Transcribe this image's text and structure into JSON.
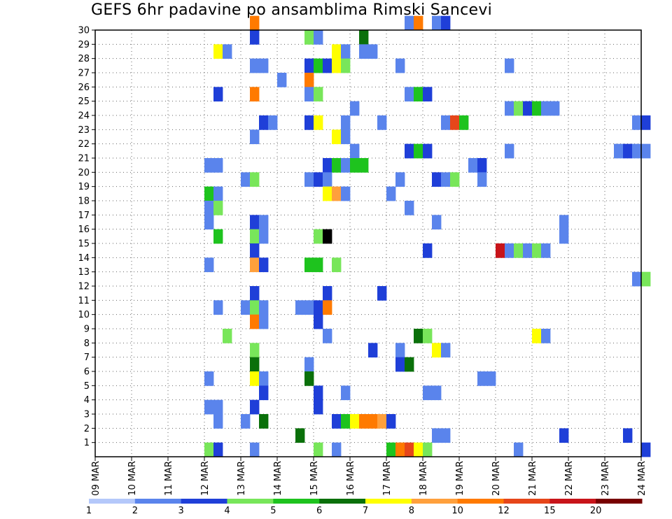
{
  "chart_data": {
    "type": "heatmap",
    "title": "GEFS 6hr padavine po ansamblima Rimski Sancevi",
    "x_unit": "6-hour step from 09 MAR 00Z",
    "x_ticks": [
      "09 MAR",
      "10 MAR",
      "11 MAR",
      "12 MAR",
      "13 MAR",
      "14 MAR",
      "15 MAR",
      "16 MAR",
      "17 MAR",
      "18 MAR",
      "19 MAR",
      "20 MAR",
      "21 MAR",
      "22 MAR",
      "23 MAR",
      "24 MAR"
    ],
    "y_ticks": [
      "1",
      "2",
      "3",
      "4",
      "5",
      "6",
      "7",
      "8",
      "9",
      "10",
      "11",
      "12",
      "13",
      "14",
      "15",
      "16",
      "17",
      "18",
      "19",
      "20",
      "21",
      "22",
      "23",
      "24",
      "25",
      "26",
      "27",
      "28",
      "29",
      "30"
    ],
    "grid": true,
    "legend": {
      "position": "bottom",
      "labels": [
        "1",
        "2",
        "3",
        "4",
        "5",
        "6",
        "7",
        "8",
        "10",
        "12",
        "15",
        "20"
      ],
      "colors": [
        "#b4c8fa",
        "#5a84ec",
        "#1f3fd8",
        "#78e65a",
        "#1ec31e",
        "#0a700a",
        "#ffff00",
        "#ffa03c",
        "#ff7a00",
        "#e6461a",
        "#c8141a",
        "#780000"
      ]
    },
    "cells": [
      {
        "m": 30,
        "t": 17,
        "l": 8
      },
      {
        "m": 30,
        "t": 34,
        "l": 1
      },
      {
        "m": 30,
        "t": 35,
        "l": 8
      },
      {
        "m": 30,
        "t": 37,
        "l": 1
      },
      {
        "m": 30,
        "t": 38,
        "l": 2
      },
      {
        "m": 29,
        "t": 17,
        "l": 2
      },
      {
        "m": 29,
        "t": 23,
        "l": 3
      },
      {
        "m": 29,
        "t": 24,
        "l": 1
      },
      {
        "m": 29,
        "t": 29,
        "l": 5
      },
      {
        "m": 28,
        "t": 13,
        "l": 6
      },
      {
        "m": 28,
        "t": 14,
        "l": 1
      },
      {
        "m": 28,
        "t": 26,
        "l": 6
      },
      {
        "m": 28,
        "t": 27,
        "l": 1
      },
      {
        "m": 28,
        "t": 29,
        "l": 1
      },
      {
        "m": 28,
        "t": 30,
        "l": 1
      },
      {
        "m": 27,
        "t": 17,
        "l": 1
      },
      {
        "m": 27,
        "t": 18,
        "l": 1
      },
      {
        "m": 27,
        "t": 23,
        "l": 2
      },
      {
        "m": 27,
        "t": 24,
        "l": 4
      },
      {
        "m": 27,
        "t": 25,
        "l": 2
      },
      {
        "m": 27,
        "t": 26,
        "l": 6
      },
      {
        "m": 27,
        "t": 27,
        "l": 3
      },
      {
        "m": 27,
        "t": 33,
        "l": 1
      },
      {
        "m": 27,
        "t": 45,
        "l": 1
      },
      {
        "m": 26,
        "t": 20,
        "l": 1
      },
      {
        "m": 26,
        "t": 23,
        "l": 8
      },
      {
        "m": 25,
        "t": 13,
        "l": 2
      },
      {
        "m": 25,
        "t": 17,
        "l": 8
      },
      {
        "m": 25,
        "t": 23,
        "l": 1
      },
      {
        "m": 25,
        "t": 24,
        "l": 3
      },
      {
        "m": 25,
        "t": 34,
        "l": 1
      },
      {
        "m": 25,
        "t": 35,
        "l": 4
      },
      {
        "m": 25,
        "t": 36,
        "l": 2
      },
      {
        "m": 24,
        "t": 28,
        "l": 1
      },
      {
        "m": 24,
        "t": 45,
        "l": 1
      },
      {
        "m": 24,
        "t": 46,
        "l": 3
      },
      {
        "m": 24,
        "t": 47,
        "l": 2
      },
      {
        "m": 24,
        "t": 48,
        "l": 4
      },
      {
        "m": 24,
        "t": 49,
        "l": 1
      },
      {
        "m": 24,
        "t": 50,
        "l": 1
      },
      {
        "m": 23,
        "t": 18,
        "l": 2
      },
      {
        "m": 23,
        "t": 19,
        "l": 1
      },
      {
        "m": 23,
        "t": 23,
        "l": 2
      },
      {
        "m": 23,
        "t": 24,
        "l": 6
      },
      {
        "m": 23,
        "t": 27,
        "l": 1
      },
      {
        "m": 23,
        "t": 31,
        "l": 1
      },
      {
        "m": 23,
        "t": 38,
        "l": 1
      },
      {
        "m": 23,
        "t": 39,
        "l": 9
      },
      {
        "m": 23,
        "t": 40,
        "l": 4
      },
      {
        "m": 23,
        "t": 59,
        "l": 1
      },
      {
        "m": 23,
        "t": 60,
        "l": 2
      },
      {
        "m": 22,
        "t": 17,
        "l": 1
      },
      {
        "m": 22,
        "t": 26,
        "l": 6
      },
      {
        "m": 22,
        "t": 27,
        "l": 1
      },
      {
        "m": 21,
        "t": 28,
        "l": 1
      },
      {
        "m": 21,
        "t": 34,
        "l": 2
      },
      {
        "m": 21,
        "t": 35,
        "l": 4
      },
      {
        "m": 21,
        "t": 36,
        "l": 2
      },
      {
        "m": 21,
        "t": 45,
        "l": 1
      },
      {
        "m": 21,
        "t": 57,
        "l": 1
      },
      {
        "m": 21,
        "t": 58,
        "l": 2
      },
      {
        "m": 21,
        "t": 59,
        "l": 1
      },
      {
        "m": 21,
        "t": 60,
        "l": 1
      },
      {
        "m": 20,
        "t": 12,
        "l": 1
      },
      {
        "m": 20,
        "t": 13,
        "l": 1
      },
      {
        "m": 20,
        "t": 25,
        "l": 2
      },
      {
        "m": 20,
        "t": 26,
        "l": 4
      },
      {
        "m": 20,
        "t": 27,
        "l": 1
      },
      {
        "m": 20,
        "t": 28,
        "l": 4
      },
      {
        "m": 20,
        "t": 29,
        "l": 4
      },
      {
        "m": 20,
        "t": 41,
        "l": 1
      },
      {
        "m": 20,
        "t": 42,
        "l": 2
      },
      {
        "m": 19,
        "t": 16,
        "l": 1
      },
      {
        "m": 19,
        "t": 17,
        "l": 3
      },
      {
        "m": 19,
        "t": 23,
        "l": 1
      },
      {
        "m": 19,
        "t": 24,
        "l": 2
      },
      {
        "m": 19,
        "t": 25,
        "l": 1
      },
      {
        "m": 19,
        "t": 33,
        "l": 1
      },
      {
        "m": 19,
        "t": 37,
        "l": 2
      },
      {
        "m": 19,
        "t": 38,
        "l": 1
      },
      {
        "m": 19,
        "t": 39,
        "l": 3
      },
      {
        "m": 19,
        "t": 42,
        "l": 1
      },
      {
        "m": 18,
        "t": 12,
        "l": 4
      },
      {
        "m": 18,
        "t": 13,
        "l": 1
      },
      {
        "m": 18,
        "t": 25,
        "l": 6
      },
      {
        "m": 18,
        "t": 26,
        "l": 7
      },
      {
        "m": 18,
        "t": 27,
        "l": 1
      },
      {
        "m": 18,
        "t": 32,
        "l": 1
      },
      {
        "m": 17,
        "t": 12,
        "l": 1
      },
      {
        "m": 17,
        "t": 13,
        "l": 3
      },
      {
        "m": 17,
        "t": 34,
        "l": 1
      },
      {
        "m": 16,
        "t": 12,
        "l": 1
      },
      {
        "m": 16,
        "t": 17,
        "l": 2
      },
      {
        "m": 16,
        "t": 18,
        "l": 1
      },
      {
        "m": 16,
        "t": 37,
        "l": 1
      },
      {
        "m": 16,
        "t": 51,
        "l": 1
      },
      {
        "m": 15,
        "t": 13,
        "l": 4
      },
      {
        "m": 15,
        "t": 17,
        "l": 3
      },
      {
        "m": 15,
        "t": 18,
        "l": 1
      },
      {
        "m": 15,
        "t": 24,
        "l": 3
      },
      {
        "m": 15,
        "t": 25,
        "l": 20
      },
      {
        "m": 15,
        "t": 51,
        "l": 1
      },
      {
        "m": 14,
        "t": 17,
        "l": 2
      },
      {
        "m": 14,
        "t": 36,
        "l": 2
      },
      {
        "m": 14,
        "t": 44,
        "l": 10
      },
      {
        "m": 14,
        "t": 45,
        "l": 1
      },
      {
        "m": 14,
        "t": 46,
        "l": 3
      },
      {
        "m": 14,
        "t": 47,
        "l": 1
      },
      {
        "m": 14,
        "t": 48,
        "l": 3
      },
      {
        "m": 14,
        "t": 49,
        "l": 1
      },
      {
        "m": 13,
        "t": 12,
        "l": 1
      },
      {
        "m": 13,
        "t": 17,
        "l": 7
      },
      {
        "m": 13,
        "t": 18,
        "l": 2
      },
      {
        "m": 13,
        "t": 23,
        "l": 4
      },
      {
        "m": 13,
        "t": 24,
        "l": 4
      },
      {
        "m": 13,
        "t": 26,
        "l": 3
      },
      {
        "m": 12,
        "t": 59,
        "l": 1
      },
      {
        "m": 12,
        "t": 60,
        "l": 3
      },
      {
        "m": 11,
        "t": 17,
        "l": 2
      },
      {
        "m": 11,
        "t": 25,
        "l": 2
      },
      {
        "m": 11,
        "t": 31,
        "l": 2
      },
      {
        "m": 10,
        "t": 13,
        "l": 1
      },
      {
        "m": 10,
        "t": 16,
        "l": 1
      },
      {
        "m": 10,
        "t": 17,
        "l": 3
      },
      {
        "m": 10,
        "t": 18,
        "l": 1
      },
      {
        "m": 10,
        "t": 22,
        "l": 1
      },
      {
        "m": 10,
        "t": 23,
        "l": 1
      },
      {
        "m": 10,
        "t": 24,
        "l": 2
      },
      {
        "m": 10,
        "t": 25,
        "l": 8
      },
      {
        "m": 9,
        "t": 17,
        "l": 8
      },
      {
        "m": 9,
        "t": 18,
        "l": 1
      },
      {
        "m": 9,
        "t": 24,
        "l": 2
      },
      {
        "m": 8,
        "t": 14,
        "l": 3
      },
      {
        "m": 8,
        "t": 25,
        "l": 1
      },
      {
        "m": 8,
        "t": 35,
        "l": 5
      },
      {
        "m": 8,
        "t": 36,
        "l": 3
      },
      {
        "m": 8,
        "t": 48,
        "l": 6
      },
      {
        "m": 8,
        "t": 49,
        "l": 1
      },
      {
        "m": 7,
        "t": 17,
        "l": 3
      },
      {
        "m": 7,
        "t": 30,
        "l": 2
      },
      {
        "m": 7,
        "t": 33,
        "l": 1
      },
      {
        "m": 7,
        "t": 37,
        "l": 6
      },
      {
        "m": 7,
        "t": 38,
        "l": 1
      },
      {
        "m": 6,
        "t": 17,
        "l": 5
      },
      {
        "m": 6,
        "t": 23,
        "l": 1
      },
      {
        "m": 6,
        "t": 33,
        "l": 2
      },
      {
        "m": 6,
        "t": 34,
        "l": 5
      },
      {
        "m": 5,
        "t": 12,
        "l": 1
      },
      {
        "m": 5,
        "t": 17,
        "l": 6
      },
      {
        "m": 5,
        "t": 18,
        "l": 1
      },
      {
        "m": 5,
        "t": 23,
        "l": 5
      },
      {
        "m": 5,
        "t": 42,
        "l": 1
      },
      {
        "m": 5,
        "t": 43,
        "l": 1
      },
      {
        "m": 4,
        "t": 18,
        "l": 2
      },
      {
        "m": 4,
        "t": 24,
        "l": 2
      },
      {
        "m": 4,
        "t": 27,
        "l": 1
      },
      {
        "m": 4,
        "t": 36,
        "l": 1
      },
      {
        "m": 4,
        "t": 37,
        "l": 1
      },
      {
        "m": 3,
        "t": 12,
        "l": 1
      },
      {
        "m": 3,
        "t": 13,
        "l": 1
      },
      {
        "m": 3,
        "t": 17,
        "l": 2
      },
      {
        "m": 3,
        "t": 24,
        "l": 2
      },
      {
        "m": 2,
        "t": 13,
        "l": 1
      },
      {
        "m": 2,
        "t": 16,
        "l": 1
      },
      {
        "m": 2,
        "t": 18,
        "l": 5
      },
      {
        "m": 2,
        "t": 26,
        "l": 2
      },
      {
        "m": 2,
        "t": 27,
        "l": 4
      },
      {
        "m": 2,
        "t": 28,
        "l": 6
      },
      {
        "m": 2,
        "t": 29,
        "l": 8
      },
      {
        "m": 2,
        "t": 30,
        "l": 8
      },
      {
        "m": 2,
        "t": 31,
        "l": 7
      },
      {
        "m": 2,
        "t": 32,
        "l": 2
      },
      {
        "m": 1,
        "t": 22,
        "l": 5
      },
      {
        "m": 1,
        "t": 37,
        "l": 1
      },
      {
        "m": 1,
        "t": 38,
        "l": 1
      },
      {
        "m": 1,
        "t": 51,
        "l": 2
      },
      {
        "m": 1,
        "t": 58,
        "l": 2
      },
      {
        "m": 0,
        "t": 12,
        "l": 3
      },
      {
        "m": 0,
        "t": 13,
        "l": 2
      },
      {
        "m": 0,
        "t": 17,
        "l": 1
      },
      {
        "m": 0,
        "t": 24,
        "l": 3
      },
      {
        "m": 0,
        "t": 26,
        "l": 1
      },
      {
        "m": 0,
        "t": 32,
        "l": 4
      },
      {
        "m": 0,
        "t": 33,
        "l": 8
      },
      {
        "m": 0,
        "t": 34,
        "l": 9
      },
      {
        "m": 0,
        "t": 35,
        "l": 6
      },
      {
        "m": 0,
        "t": 36,
        "l": 3
      },
      {
        "m": 0,
        "t": 46,
        "l": 1
      },
      {
        "m": 0,
        "t": 60,
        "l": 2
      }
    ]
  }
}
